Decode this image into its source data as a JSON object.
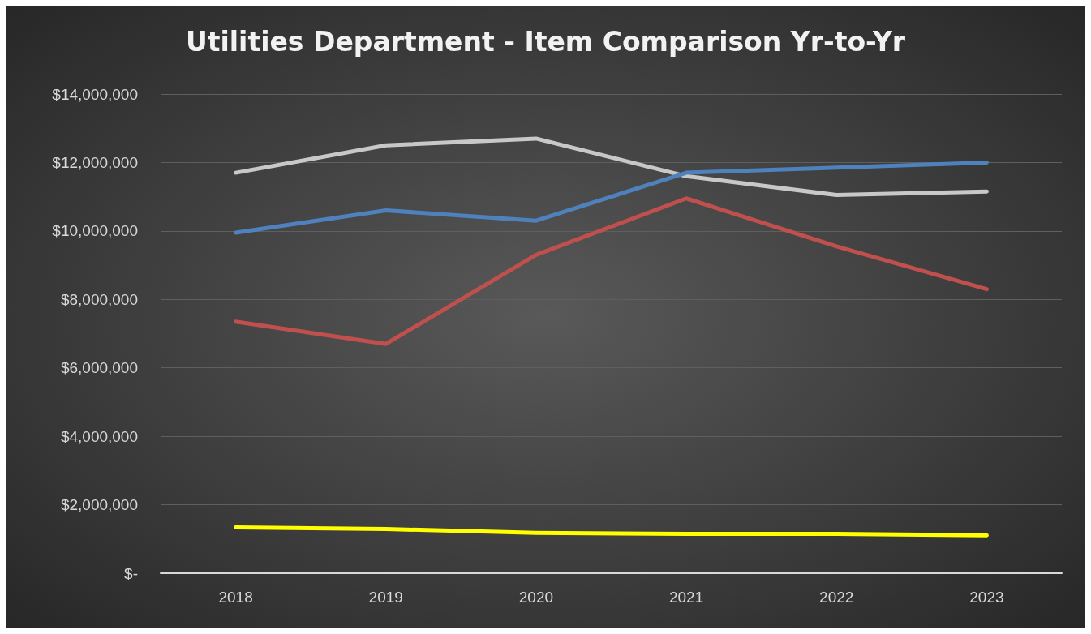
{
  "chart_data": {
    "type": "line",
    "title": "Utilities Department - Item Comparison Yr-to-Yr",
    "categories": [
      "2018",
      "2019",
      "2020",
      "2021",
      "2022",
      "2023"
    ],
    "series": [
      {
        "color": "#c8c8c8",
        "values": [
          11700000,
          12500000,
          12700000,
          11600000,
          11050000,
          11150000
        ]
      },
      {
        "color": "#4f81bd",
        "values": [
          9950000,
          10600000,
          10300000,
          11700000,
          11850000,
          12000000
        ]
      },
      {
        "color": "#c0504d",
        "values": [
          7350000,
          6700000,
          9300000,
          10950000,
          9550000,
          8300000
        ]
      },
      {
        "color": "#ffff00",
        "values": [
          1340000,
          1290000,
          1180000,
          1150000,
          1150000,
          1110000
        ]
      }
    ],
    "ylim": [
      0,
      14000000
    ],
    "yticks": [
      {
        "value": 0,
        "label": "$-"
      },
      {
        "value": 2000000,
        "label": "$2,000,000"
      },
      {
        "value": 4000000,
        "label": "$4,000,000"
      },
      {
        "value": 6000000,
        "label": "$6,000,000"
      },
      {
        "value": 8000000,
        "label": "$8,000,000"
      },
      {
        "value": 10000000,
        "label": "$10,000,000"
      },
      {
        "value": 12000000,
        "label": "$12,000,000"
      },
      {
        "value": 14000000,
        "label": "$14,000,000"
      }
    ],
    "grid": "y",
    "marker": "none",
    "line_style": "solid"
  }
}
